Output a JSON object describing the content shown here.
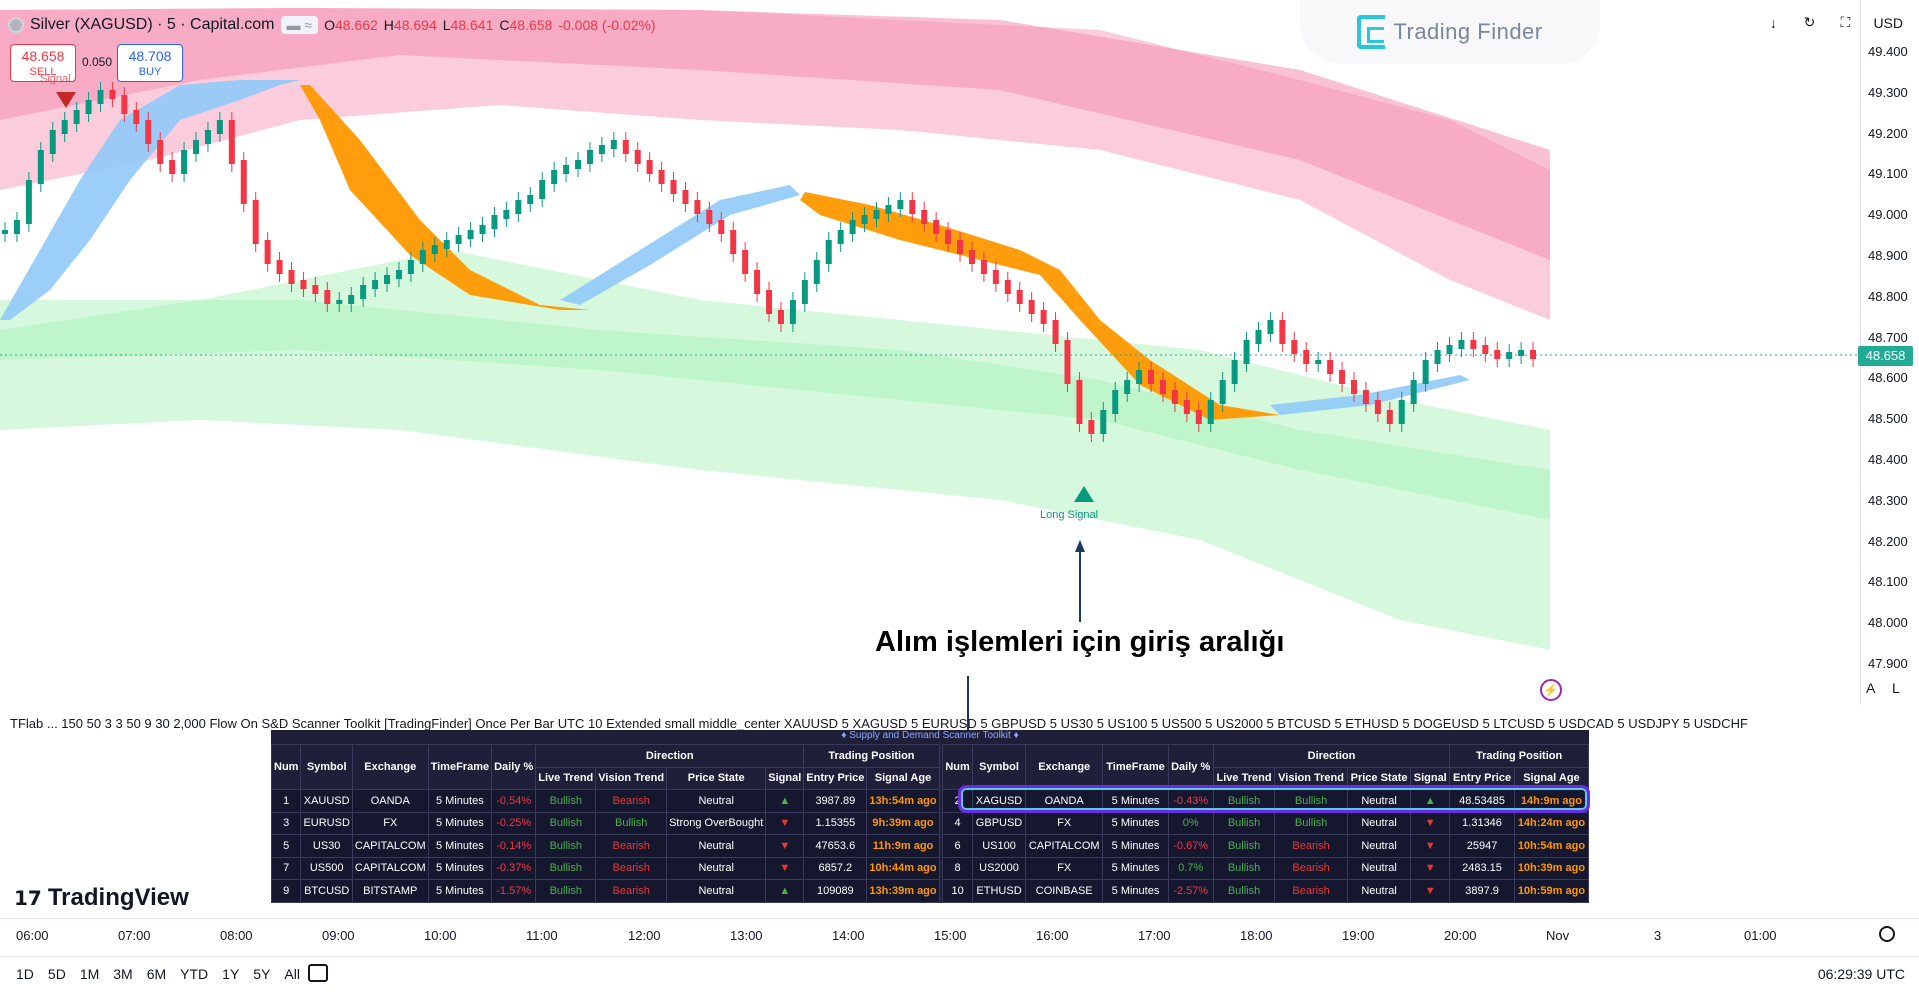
{
  "header": {
    "title": "Silver (XAGUSD) · 5 · Capital.com",
    "ohlc": {
      "o": "48.662",
      "h": "48.694",
      "l": "48.641",
      "c": "48.658",
      "chg": "-0.008 (-0.02%)"
    },
    "o_label": "O",
    "h_label": "H",
    "l_label": "L",
    "c_label": "C"
  },
  "trade": {
    "sell_price": "48.658",
    "sell_label": "SELL",
    "buy_price": "48.708",
    "buy_label": "BUY",
    "spread": "0.050"
  },
  "brand": {
    "watermark": "Trading Finder",
    "tradingview": "TradingView"
  },
  "top_controls": {
    "currency": "USD"
  },
  "price_axis": {
    "ticks": [
      "49.400",
      "49.300",
      "49.200",
      "49.100",
      "49.000",
      "48.900",
      "48.800",
      "48.700",
      "48.600",
      "48.500",
      "48.400",
      "48.300",
      "48.200",
      "48.100",
      "48.000",
      "47.900"
    ],
    "current": "48.658"
  },
  "time_axis": {
    "ticks": [
      "06:00",
      "07:00",
      "08:00",
      "09:00",
      "10:00",
      "11:00",
      "12:00",
      "13:00",
      "14:00",
      "15:00",
      "16:00",
      "17:00",
      "18:00",
      "19:00",
      "20:00",
      "Nov",
      "3",
      "01:00"
    ]
  },
  "signals": {
    "long": "Long Signal",
    "sell": "Signal"
  },
  "annotation": "Alım işlemleri için giriş aralığı",
  "indicator_line": "TFlab ...  150 50 3 3 50 9 30 2,000 Flow On S&D Scanner Toolkit [TradingFinder] Once Per Bar UTC 10 Extended small middle_center XAUUSD 5 XAGUSD 5 EURUSD 5 GBPUSD 5 US30 5 US100 5 US500 5 US2000 5 BTCUSD 5 ETHUSD 5 DOGEUSD 5 LTCUSD 5 USDCAD 5 USDJPY 5 USDCHF",
  "scanner": {
    "title": "♦ Supply and Demand Scanner Toolkit ♦",
    "group_direction": "Direction",
    "group_position": "Trading Position",
    "headers": [
      "Num",
      "Symbol",
      "Exchange",
      "TimeFrame",
      "Daily %",
      "Live Trend",
      "Vision Trend",
      "Price State",
      "Signal",
      "Entry Price",
      "Signal Age"
    ],
    "right_headers": [
      "Num",
      "Symbol",
      "Exchange",
      "TimeFrame",
      "Daily %",
      "Live Trend",
      "Vision Trend",
      "Price State",
      "Signal",
      "Entry Price",
      "Signal Age"
    ],
    "left_rows": [
      [
        "1",
        "XAUUSD",
        "OANDA",
        "5 Minutes",
        "-0.54%",
        "Bullish",
        "Bearish",
        "Neutral",
        "▲",
        "3987.89",
        "13h:54m ago"
      ],
      [
        "3",
        "EURUSD",
        "FX",
        "5 Minutes",
        "-0.25%",
        "Bullish",
        "Bullish",
        "Strong OverBought",
        "▼",
        "1.15355",
        "9h:39m ago"
      ],
      [
        "5",
        "US30",
        "CAPITALCOM",
        "5 Minutes",
        "-0.14%",
        "Bullish",
        "Bearish",
        "Neutral",
        "▼",
        "47653.6",
        "11h:9m ago"
      ],
      [
        "7",
        "US500",
        "CAPITALCOM",
        "5 Minutes",
        "-0.37%",
        "Bullish",
        "Bearish",
        "Neutral",
        "▼",
        "6857.2",
        "10h:44m ago"
      ],
      [
        "9",
        "BTCUSD",
        "BITSTAMP",
        "5 Minutes",
        "-1.57%",
        "Bullish",
        "Bearish",
        "Neutral",
        "▲",
        "109089",
        "13h:39m ago"
      ]
    ],
    "right_rows": [
      [
        "2",
        "XAGUSD",
        "OANDA",
        "5 Minutes",
        "-0.43%",
        "Bullish",
        "Bullish",
        "Neutral",
        "▲",
        "48.53485",
        "14h:9m ago"
      ],
      [
        "4",
        "GBPUSD",
        "FX",
        "5 Minutes",
        "0%",
        "Bullish",
        "Bullish",
        "Neutral",
        "▼",
        "1.31346",
        "14h:24m ago"
      ],
      [
        "6",
        "US100",
        "CAPITALCOM",
        "5 Minutes",
        "-0.67%",
        "Bullish",
        "Bearish",
        "Neutral",
        "▼",
        "25947",
        "10h:54m ago"
      ],
      [
        "8",
        "US2000",
        "FX",
        "5 Minutes",
        "0.7%",
        "Bullish",
        "Bearish",
        "Neutral",
        "▼",
        "2483.15",
        "10h:39m ago"
      ],
      [
        "10",
        "ETHUSD",
        "COINBASE",
        "5 Minutes",
        "-2.57%",
        "Bullish",
        "Bearish",
        "Neutral",
        "▼",
        "3897.9",
        "10h:59m ago"
      ]
    ]
  },
  "bottom": {
    "ranges": [
      "1D",
      "5D",
      "1M",
      "3M",
      "6M",
      "YTD",
      "1Y",
      "5Y",
      "All"
    ],
    "clock": "06:29:39 UTC",
    "scale_a": "A",
    "scale_l": "L"
  },
  "colors": {
    "bull": "#089981",
    "bear": "#f23645",
    "supply": "#f48fb1",
    "demand": "#b9f6ca",
    "ema_up": "#90caf9",
    "ema_down": "#ff9800"
  }
}
